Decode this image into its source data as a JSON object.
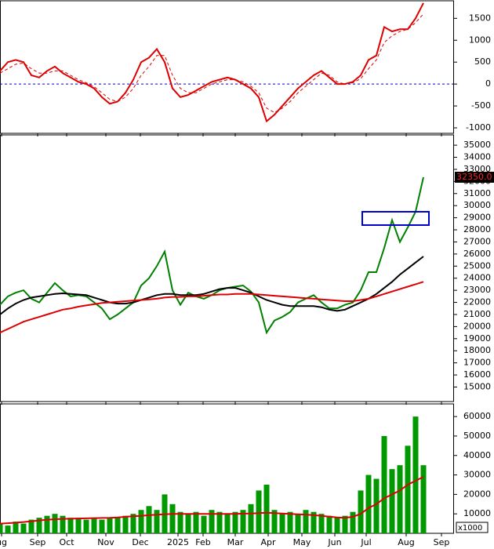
{
  "x_axis": {
    "x": [
      0,
      1,
      2,
      3,
      4,
      5,
      6,
      7,
      8,
      9,
      10,
      11,
      12,
      13,
      14,
      15,
      16,
      17,
      18,
      19,
      20,
      21,
      22,
      23,
      24,
      25,
      26,
      27,
      28,
      29,
      30,
      31,
      32,
      33,
      34,
      35,
      36,
      37,
      38,
      39,
      40,
      41,
      42,
      43,
      44,
      45,
      46,
      47,
      48,
      49,
      50,
      51,
      52,
      53,
      54
    ],
    "xlim": [
      0,
      57.8
    ],
    "xticks": [
      {
        "value": 0.2,
        "label": "ug"
      },
      {
        "value": 4.8,
        "label": "Sep"
      },
      {
        "value": 8.5,
        "label": "Oct"
      },
      {
        "value": 13.5,
        "label": "Nov"
      },
      {
        "value": 17.9,
        "label": "Dec"
      },
      {
        "value": 22.7,
        "label": "2025"
      },
      {
        "value": 25.9,
        "label": "Feb"
      },
      {
        "value": 30,
        "label": "Mar"
      },
      {
        "value": 34.2,
        "label": "Apr"
      },
      {
        "value": 38.5,
        "label": "May"
      },
      {
        "value": 42.7,
        "label": "Jun"
      },
      {
        "value": 46.7,
        "label": "Jul"
      },
      {
        "value": 51.8,
        "label": "Aug"
      },
      {
        "value": 56.3,
        "label": "Sep"
      }
    ]
  },
  "chart_data": [
    {
      "type": "line",
      "ylim": [
        -1125,
        1900
      ],
      "yticks": [
        -1000,
        -500,
        0,
        500,
        1000,
        1500
      ],
      "hline": 0,
      "hline_color": "#0000cc",
      "series": [
        {
          "color": "#dd0000",
          "dash": false,
          "values": [
            300,
            500,
            550,
            500,
            200,
            150,
            300,
            400,
            250,
            150,
            50,
            0,
            -100,
            -300,
            -450,
            -400,
            -200,
            100,
            500,
            600,
            800,
            500,
            -100,
            -300,
            -250,
            -150,
            -50,
            50,
            100,
            150,
            100,
            0,
            -100,
            -300,
            -850,
            -700,
            -500,
            -300,
            -100,
            50,
            200,
            300,
            150,
            0,
            0,
            50,
            200,
            550,
            650,
            1300,
            1200,
            1250,
            1250,
            1500,
            1850
          ]
        },
        {
          "color": "#dd0000",
          "dash": true,
          "values": [
            250,
            350,
            450,
            480,
            350,
            250,
            250,
            300,
            300,
            200,
            100,
            30,
            -60,
            -200,
            -350,
            -400,
            -300,
            -100,
            200,
            400,
            650,
            650,
            200,
            -100,
            -200,
            -200,
            -100,
            0,
            50,
            100,
            100,
            50,
            -50,
            -200,
            -550,
            -650,
            -550,
            -400,
            -200,
            -50,
            100,
            250,
            200,
            50,
            0,
            30,
            120,
            350,
            550,
            950,
            1100,
            1200,
            1250,
            1400,
            1600
          ]
        }
      ]
    },
    {
      "type": "line",
      "ylim": [
        13800,
        35850
      ],
      "yticks": [
        15000,
        16000,
        17000,
        18000,
        19000,
        20000,
        21000,
        22000,
        23000,
        24000,
        25000,
        26000,
        27000,
        28000,
        29000,
        30000,
        31000,
        32000,
        33000,
        34000,
        35000
      ],
      "marker": {
        "value": 32350,
        "label": "32350.0"
      },
      "series": [
        {
          "color": "#008000",
          "dash": false,
          "values": [
            21800,
            22500,
            22800,
            23000,
            22300,
            22000,
            22800,
            23600,
            23000,
            22500,
            22600,
            22500,
            22000,
            21500,
            20600,
            21000,
            21500,
            22000,
            23400,
            24000,
            25000,
            26200,
            23000,
            21800,
            22800,
            22500,
            22300,
            22600,
            23000,
            23200,
            23300,
            23400,
            22900,
            22000,
            19500,
            20500,
            20800,
            21200,
            22000,
            22300,
            22600,
            22000,
            21500,
            21500,
            21800,
            22000,
            23000,
            24500,
            24500,
            26500,
            28800,
            27000,
            28200,
            29500,
            32350
          ]
        },
        {
          "color": "#000000",
          "dash": false,
          "values": [
            21000,
            21500,
            21900,
            22200,
            22400,
            22500,
            22600,
            22700,
            22750,
            22700,
            22650,
            22600,
            22400,
            22200,
            22000,
            21900,
            21900,
            22000,
            22200,
            22400,
            22600,
            22700,
            22700,
            22600,
            22600,
            22600,
            22700,
            22900,
            23100,
            23200,
            23200,
            23000,
            22800,
            22500,
            22200,
            22000,
            21800,
            21700,
            21700,
            21700,
            21700,
            21600,
            21400,
            21300,
            21400,
            21700,
            22000,
            22300,
            22700,
            23200,
            23700,
            24300,
            24800,
            25300,
            25800
          ]
        },
        {
          "color": "#dd0000",
          "dash": false,
          "values": [
            19500,
            19800,
            20100,
            20400,
            20600,
            20800,
            21000,
            21200,
            21400,
            21500,
            21650,
            21750,
            21850,
            21950,
            22000,
            22050,
            22100,
            22150,
            22200,
            22250,
            22300,
            22400,
            22450,
            22450,
            22500,
            22500,
            22550,
            22600,
            22650,
            22650,
            22700,
            22700,
            22700,
            22650,
            22600,
            22550,
            22500,
            22450,
            22400,
            22350,
            22300,
            22250,
            22200,
            22150,
            22100,
            22100,
            22200,
            22300,
            22500,
            22700,
            22900,
            23100,
            23300,
            23500,
            23700
          ]
        }
      ]
    },
    {
      "type": "bar",
      "ylim": [
        0,
        66500
      ],
      "yticks": [
        10000,
        20000,
        30000,
        40000,
        50000,
        60000
      ],
      "unit_label": "x1000",
      "series": [
        {
          "kind": "bar",
          "color": "#009900",
          "values": [
            5000,
            4000,
            6000,
            5000,
            7000,
            8000,
            9000,
            10000,
            9000,
            8000,
            8000,
            7000,
            8000,
            7000,
            8000,
            8000,
            9000,
            10000,
            12000,
            14000,
            12000,
            20000,
            15000,
            11000,
            10000,
            11000,
            9000,
            12000,
            11000,
            10000,
            11000,
            12000,
            15000,
            22000,
            25000,
            12000,
            10000,
            11000,
            10000,
            12000,
            11000,
            10000,
            9000,
            8000,
            9000,
            11000,
            22000,
            30000,
            28000,
            50000,
            33000,
            35000,
            45000,
            60000,
            35000
          ]
        },
        {
          "kind": "line",
          "color": "#dd0000",
          "values": [
            5000,
            5200,
            5500,
            5800,
            6200,
            6600,
            7000,
            7200,
            7400,
            7500,
            7600,
            7700,
            7800,
            7900,
            8000,
            8200,
            8500,
            8800,
            9000,
            9300,
            9600,
            9800,
            10000,
            10000,
            10000,
            10000,
            10000,
            10000,
            10000,
            10000,
            10000,
            10100,
            10200,
            10400,
            10600,
            10400,
            10200,
            10000,
            9800,
            9600,
            9400,
            9000,
            8600,
            8200,
            8000,
            8500,
            10000,
            13000,
            15000,
            18000,
            20000,
            22000,
            25000,
            27000,
            29000
          ]
        }
      ]
    }
  ]
}
